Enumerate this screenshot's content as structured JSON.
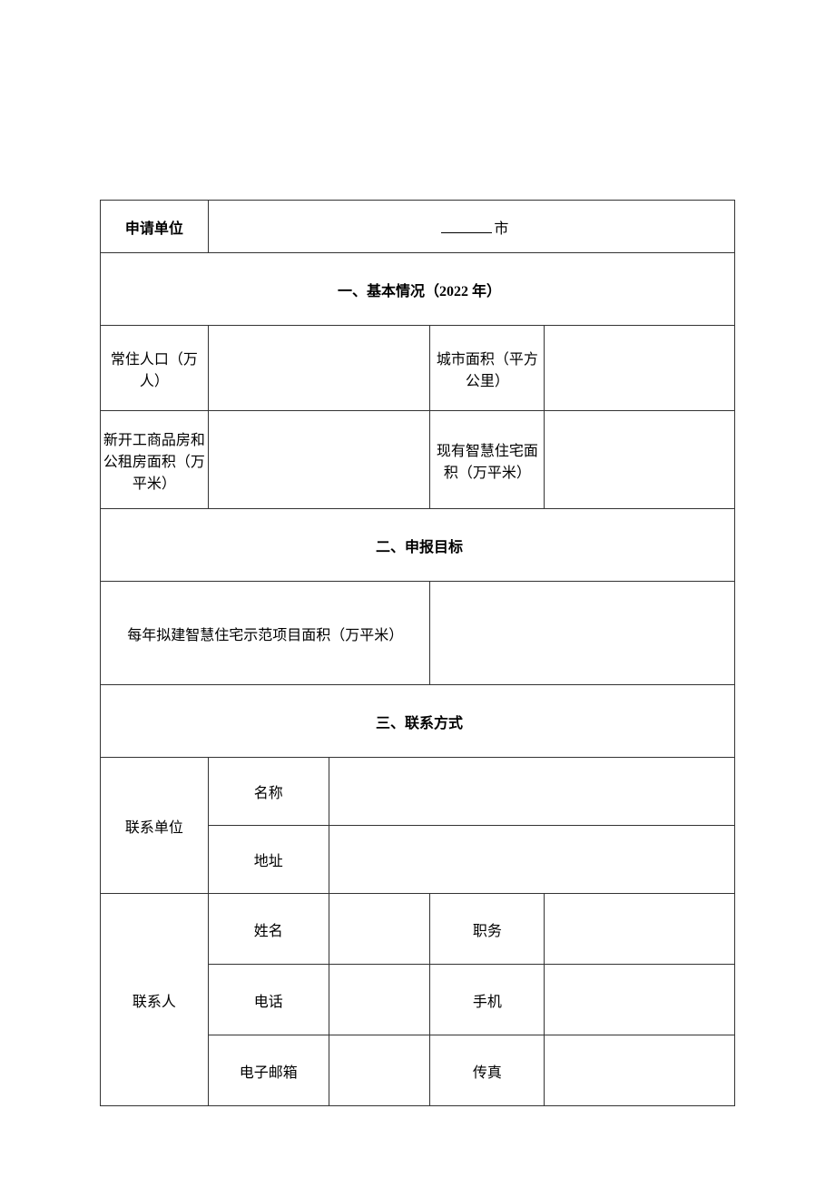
{
  "applicant": {
    "label": "申请单位",
    "suffix": "市"
  },
  "section1": {
    "title": "一、基本情况（2022 年）",
    "population_label": "常住人口（万人）",
    "city_area_label": "城市面积（平方公里）",
    "new_housing_label": "新开工商品房和公租房面积（万平米）",
    "smart_area_label": "现有智慧住宅面积（万平米）"
  },
  "section2": {
    "title": "二、申报目标",
    "yearly_target_label": "每年拟建智慧住宅示范项目面积（万平米）"
  },
  "section3": {
    "title": "三、联系方式",
    "contact_unit": "联系单位",
    "unit_name_label": "名称",
    "unit_address_label": "地址",
    "contact_person": "联系人",
    "name_label": "姓名",
    "duty_label": "职务",
    "phone_label": "电话",
    "mobile_label": "手机",
    "email_label": "电子邮箱",
    "fax_label": "传真"
  }
}
